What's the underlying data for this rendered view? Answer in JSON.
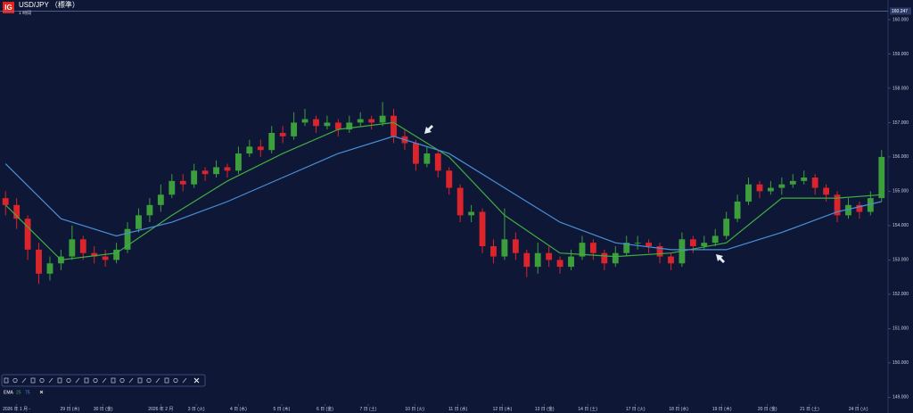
{
  "header": {
    "logo": "IG",
    "instrument": "USD/JPY （標準）",
    "interval": "1 時間"
  },
  "chart_data": {
    "type": "candlestick",
    "indicator": "EMA",
    "up_color": "#3c9f3c",
    "down_color": "#d9252b",
    "x": [
      0,
      1,
      2,
      3,
      4,
      5,
      6,
      7,
      8,
      9,
      10,
      11,
      12,
      13,
      14,
      15,
      16,
      17,
      18,
      19,
      20,
      21,
      22,
      23,
      24,
      25,
      26,
      27,
      28,
      29,
      30,
      31,
      32,
      33,
      34,
      35,
      36,
      37,
      38,
      39,
      40,
      41,
      42,
      43,
      44,
      45,
      46,
      47,
      48,
      49,
      50,
      51,
      52,
      53,
      54,
      55,
      56,
      57,
      58,
      59,
      60,
      61,
      62,
      63,
      64,
      65,
      66,
      67,
      68,
      69,
      70,
      71,
      72,
      73,
      74,
      75,
      76,
      77,
      78,
      79
    ],
    "open": [
      154.8,
      154.6,
      154.2,
      153.3,
      152.6,
      152.9,
      153.1,
      153.6,
      153.2,
      153.1,
      153.0,
      153.3,
      153.9,
      154.3,
      154.6,
      154.9,
      155.3,
      155.2,
      155.6,
      155.5,
      155.7,
      155.6,
      156.1,
      156.3,
      156.2,
      156.7,
      156.6,
      157.0,
      157.1,
      156.9,
      157.0,
      156.8,
      157.0,
      157.1,
      157.0,
      157.2,
      156.6,
      156.4,
      155.8,
      156.1,
      155.6,
      155.1,
      154.3,
      154.4,
      153.4,
      153.1,
      153.6,
      153.2,
      152.8,
      153.2,
      153.0,
      152.8,
      153.1,
      153.5,
      153.2,
      152.9,
      153.2,
      153.5,
      153.5,
      153.4,
      153.1,
      152.9,
      153.6,
      153.4,
      153.5,
      153.7,
      154.2,
      154.7,
      155.2,
      155.0,
      155.1,
      155.2,
      155.3,
      155.4,
      155.1,
      154.9,
      154.3,
      154.6,
      154.4,
      154.8
    ],
    "high": [
      155.0,
      154.8,
      154.3,
      153.5,
      153.1,
      153.3,
      154.0,
      153.7,
      153.4,
      153.3,
      153.5,
      154.1,
      154.5,
      154.8,
      155.2,
      155.5,
      155.5,
      155.8,
      155.7,
      155.9,
      155.8,
      156.3,
      156.5,
      156.5,
      156.9,
      156.9,
      157.3,
      157.4,
      157.2,
      157.2,
      157.1,
      157.2,
      157.3,
      157.2,
      157.6,
      157.4,
      156.8,
      156.5,
      156.3,
      156.2,
      155.7,
      155.2,
      154.6,
      154.5,
      153.6,
      154.5,
      153.8,
      153.3,
      153.5,
      153.4,
      153.1,
      153.3,
      153.7,
      153.6,
      153.3,
      153.4,
      153.7,
      153.7,
      153.6,
      153.5,
      153.2,
      153.8,
      153.7,
      153.7,
      153.9,
      154.4,
      154.9,
      155.4,
      155.3,
      155.3,
      155.4,
      155.5,
      155.6,
      155.5,
      155.2,
      155.0,
      154.8,
      154.7,
      155.0,
      156.2
    ],
    "low": [
      154.3,
      153.9,
      153.0,
      152.3,
      152.4,
      152.7,
      153.0,
      153.0,
      152.9,
      152.8,
      152.9,
      153.2,
      153.8,
      154.1,
      154.4,
      154.8,
      155.0,
      155.1,
      155.3,
      155.4,
      155.4,
      155.5,
      156.0,
      156.0,
      156.1,
      156.4,
      156.5,
      156.9,
      156.7,
      156.8,
      156.6,
      156.7,
      156.9,
      156.8,
      156.9,
      156.4,
      156.2,
      155.6,
      155.7,
      155.4,
      154.9,
      154.1,
      154.1,
      153.2,
      152.9,
      153.0,
      153.0,
      152.5,
      152.6,
      152.8,
      152.6,
      152.7,
      153.0,
      153.0,
      152.7,
      152.8,
      153.1,
      153.3,
      153.2,
      152.9,
      152.7,
      152.8,
      153.2,
      153.3,
      153.4,
      153.6,
      154.1,
      154.6,
      154.8,
      154.9,
      154.9,
      155.1,
      155.2,
      154.9,
      154.7,
      154.1,
      154.2,
      154.2,
      154.3,
      154.7
    ],
    "close": [
      154.6,
      154.2,
      153.3,
      152.6,
      152.9,
      153.1,
      153.6,
      153.2,
      153.1,
      153.0,
      153.3,
      153.9,
      154.3,
      154.6,
      154.9,
      155.3,
      155.2,
      155.6,
      155.5,
      155.7,
      155.6,
      156.1,
      156.3,
      156.2,
      156.7,
      156.6,
      157.0,
      157.1,
      156.9,
      157.0,
      156.8,
      157.0,
      157.1,
      157.0,
      157.2,
      156.6,
      156.4,
      155.8,
      156.1,
      155.6,
      155.1,
      154.3,
      154.4,
      153.4,
      153.1,
      153.6,
      153.2,
      152.8,
      153.2,
      153.0,
      152.8,
      153.1,
      153.5,
      153.2,
      152.9,
      153.2,
      153.5,
      153.5,
      153.4,
      153.1,
      152.9,
      153.6,
      153.4,
      153.5,
      153.7,
      154.2,
      154.7,
      155.2,
      155.0,
      155.1,
      155.2,
      155.3,
      155.4,
      155.1,
      154.9,
      154.3,
      154.6,
      154.4,
      154.8,
      156.0
    ],
    "series": [
      {
        "name": "25",
        "color": "#3fae3f",
        "x": [
          0,
          5,
          10,
          15,
          20,
          25,
          30,
          35,
          40,
          45,
          50,
          55,
          60,
          65,
          70,
          75,
          79
        ],
        "values": [
          154.6,
          153.0,
          153.2,
          154.3,
          155.3,
          156.1,
          156.8,
          157.0,
          156.0,
          154.3,
          153.2,
          153.1,
          153.2,
          153.5,
          154.8,
          154.8,
          154.9
        ]
      },
      {
        "name": "75",
        "color": "#4a8fd8",
        "x": [
          0,
          5,
          10,
          15,
          20,
          25,
          30,
          35,
          40,
          45,
          50,
          55,
          60,
          65,
          70,
          75,
          79
        ],
        "values": [
          155.8,
          154.2,
          153.7,
          154.1,
          154.7,
          155.4,
          156.1,
          156.6,
          156.1,
          155.1,
          154.1,
          153.5,
          153.3,
          153.3,
          153.8,
          154.4,
          154.7
        ]
      }
    ],
    "price_line": {
      "value": 160.247,
      "label": "160.247"
    },
    "xlim": [
      -0.5,
      79.5
    ],
    "ylim": [
      148.75,
      160.57
    ],
    "yticks": [
      {
        "value": 160,
        "label": "160.000"
      },
      {
        "value": 159,
        "label": "159.000"
      },
      {
        "value": 158,
        "label": "158.000"
      },
      {
        "value": 157,
        "label": "157.000"
      },
      {
        "value": 156,
        "label": "156.000"
      },
      {
        "value": 155,
        "label": "155.000"
      },
      {
        "value": 154,
        "label": "154.000"
      },
      {
        "value": 153,
        "label": "153.000"
      },
      {
        "value": 152,
        "label": "152.000"
      },
      {
        "value": 151,
        "label": "151.000"
      },
      {
        "value": 150,
        "label": "150.000"
      },
      {
        "value": 149,
        "label": "149.000"
      }
    ],
    "xticks": [
      {
        "value": 1.0,
        "label": "2026 年 1 月 -"
      },
      {
        "value": 5.8,
        "label": "29 日 (木)"
      },
      {
        "value": 8.8,
        "label": "30 日 (金)"
      },
      {
        "value": 14.0,
        "label": "2026 年 2 月"
      },
      {
        "value": 17.2,
        "label": "3 日 (火)"
      },
      {
        "value": 21.0,
        "label": "4 日 (水)"
      },
      {
        "value": 24.9,
        "label": "5 日 (木)"
      },
      {
        "value": 28.8,
        "label": "6 日 (金)"
      },
      {
        "value": 32.7,
        "label": "7 日 (土)"
      },
      {
        "value": 36.9,
        "label": "10 日 (火)"
      },
      {
        "value": 40.8,
        "label": "11 日 (水)"
      },
      {
        "value": 44.8,
        "label": "12 日 (木)"
      },
      {
        "value": 48.6,
        "label": "13 日 (金)"
      },
      {
        "value": 52.5,
        "label": "14 日 (土)"
      },
      {
        "value": 56.8,
        "label": "17 日 (火)"
      },
      {
        "value": 60.7,
        "label": "18 日 (水)"
      },
      {
        "value": 64.6,
        "label": "19 日 (木)"
      },
      {
        "value": 68.7,
        "label": "20 日 (金)"
      },
      {
        "value": 72.5,
        "label": "21 日 (土)"
      },
      {
        "value": 76.9,
        "label": "24 日 (火)"
      }
    ]
  }
}
